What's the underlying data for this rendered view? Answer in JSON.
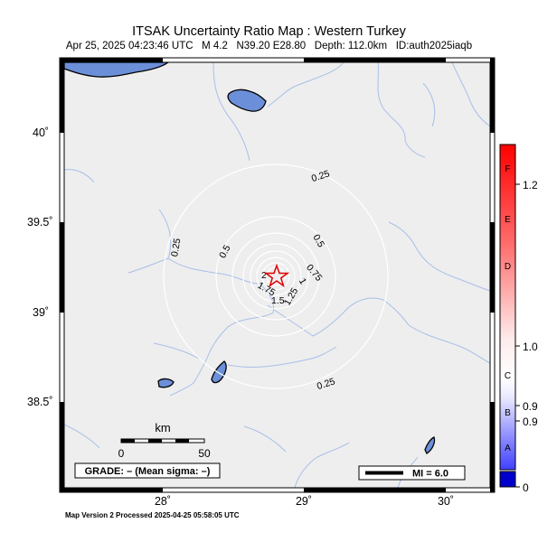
{
  "header": {
    "title": "ITSAK Uncertainty Ratio Map : Western Turkey",
    "subtitle": "Apr 25, 2025 04:23:46 UTC   M 4.2   N39.20 E28.80   Depth: 112.0km   ID:auth2025iaqb"
  },
  "axes": {
    "lat_labels": [
      "40˚",
      "39.5˚",
      "39˚",
      "38.5˚"
    ],
    "lon_labels": [
      "28˚",
      "29˚",
      "30˚"
    ]
  },
  "epicenter": {
    "lat": 39.2,
    "lon": 28.8,
    "marker": "star-icon",
    "color": "#e00000"
  },
  "contours": {
    "labels": [
      "0.25",
      "0.5",
      "0.75",
      "1",
      "1.25",
      "1.5",
      "1.75",
      "2",
      "0.25",
      "0.5",
      "0.25"
    ],
    "color": "#ffffff"
  },
  "scale_bar": {
    "unit": "km",
    "min": "0",
    "max": "50"
  },
  "grade_box": "GRADE: – (Mean sigma: –)",
  "legend_box": "MI = 6.0",
  "colorbar": {
    "letters": [
      "F",
      "E",
      "D",
      "C",
      "B",
      "A"
    ],
    "values": [
      "1.2",
      "1.0",
      "0.9",
      "0.9",
      "0"
    ],
    "top_color": "#ff0000",
    "bottom_color": "#0000ff",
    "cap_color": "#0000cc"
  },
  "colors": {
    "land": "#eeeeee",
    "water": "#6b8fd8",
    "rivers": "#a8bfe8",
    "frame": "#000000"
  },
  "footer": "Map Version 2 Processed 2025-04-25 05:58:05 UTC"
}
